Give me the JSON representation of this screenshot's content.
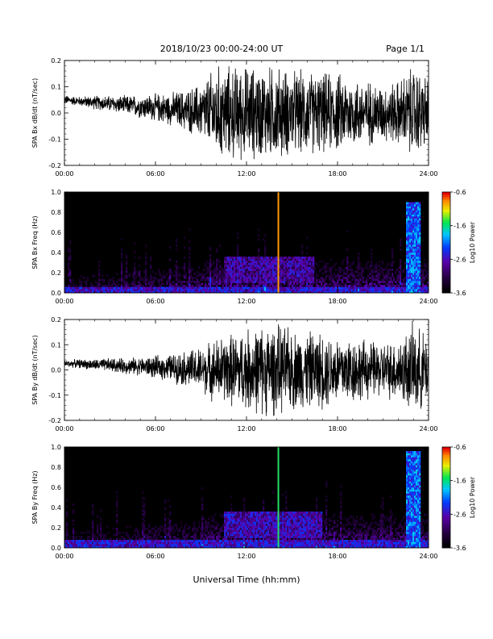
{
  "header": {
    "title": "2018/10/23  00:00-24:00 UT",
    "page_label": "Page 1/1"
  },
  "footer": {
    "xlabel": "Universal Time (hh:mm)"
  },
  "colors": {
    "trace": "#000000",
    "spec_background": "#000000",
    "bx_marker": "#ff9900",
    "by_marker": "#22dd66"
  },
  "chart_data": [
    {
      "type": "line",
      "id": "bx_timeseries",
      "ylabel": "SPA Bx dB/dt (nT/sec)",
      "x_ticks": [
        "00:00",
        "06:00",
        "12:00",
        "18:00",
        "24:00"
      ],
      "y_ticks": [
        "0.2",
        "0.1",
        "0.0",
        "-0.1",
        "-0.2"
      ],
      "xlim": [
        0,
        24
      ],
      "ylim": [
        -0.2,
        0.2
      ],
      "series": [
        {
          "x": [
            0,
            1,
            2,
            3,
            4,
            5,
            6,
            7,
            8,
            9,
            10,
            11,
            12,
            13,
            14,
            15,
            16,
            17,
            18,
            19,
            20,
            21,
            22,
            23,
            24
          ],
          "center": [
            0.05,
            0.045,
            0.04,
            0.035,
            0.03,
            0.025,
            0.02,
            0.015,
            0.01,
            0.005,
            0,
            0,
            0,
            0,
            0,
            0,
            0,
            0,
            0,
            0,
            0,
            0,
            0,
            0,
            0
          ],
          "amplitude": [
            0.02,
            0.02,
            0.03,
            0.035,
            0.04,
            0.05,
            0.06,
            0.07,
            0.09,
            0.12,
            0.2,
            0.2,
            0.2,
            0.2,
            0.2,
            0.18,
            0.18,
            0.17,
            0.17,
            0.15,
            0.14,
            0.12,
            0.14,
            0.2,
            0.15
          ]
        }
      ]
    },
    {
      "type": "heatmap",
      "id": "bx_spectrogram",
      "ylabel": "SPA Bx Freq (Hz)",
      "x_ticks": [
        "00:00",
        "06:00",
        "12:00",
        "18:00",
        "24:00"
      ],
      "y_ticks": [
        "1.0",
        "0.8",
        "0.6",
        "0.4",
        "0.2",
        "0.0"
      ],
      "xlim": [
        0,
        24
      ],
      "ylim": [
        0,
        1.0
      ],
      "colorbar": {
        "label": "Log10 Power",
        "ticks": [
          "-0.6",
          "-1.6",
          "-2.6",
          "-3.6"
        ],
        "range": [
          -3.6,
          -0.6
        ]
      },
      "marker_hour": 14.1,
      "features": [
        {
          "x": [
            10.5,
            16.5
          ],
          "y": [
            0.1,
            0.35
          ],
          "level": -2.4
        },
        {
          "x": [
            22.5,
            23.5
          ],
          "y": [
            0.0,
            0.9
          ],
          "level": -1.8
        },
        {
          "x": [
            0,
            24
          ],
          "y": [
            0.0,
            0.05
          ],
          "level": -2.2
        }
      ]
    },
    {
      "type": "line",
      "id": "by_timeseries",
      "ylabel": "SPA By dB/dt (nT/sec)",
      "x_ticks": [
        "00:00",
        "06:00",
        "12:00",
        "18:00",
        "24:00"
      ],
      "y_ticks": [
        "0.2",
        "0.1",
        "0.0",
        "-0.1",
        "-0.2"
      ],
      "xlim": [
        0,
        24
      ],
      "ylim": [
        -0.2,
        0.2
      ],
      "series": [
        {
          "x": [
            0,
            1,
            2,
            3,
            4,
            5,
            6,
            7,
            8,
            9,
            10,
            11,
            12,
            13,
            14,
            15,
            16,
            17,
            18,
            19,
            20,
            21,
            22,
            23,
            24
          ],
          "center": [
            0.025,
            0.025,
            0.02,
            0.02,
            0.015,
            0.015,
            0.01,
            0.01,
            0.005,
            0,
            0,
            0,
            0,
            0,
            0,
            0,
            0,
            0,
            0,
            0,
            0,
            0,
            0,
            0,
            0
          ],
          "amplitude": [
            0.015,
            0.02,
            0.025,
            0.03,
            0.035,
            0.04,
            0.05,
            0.06,
            0.08,
            0.1,
            0.14,
            0.16,
            0.18,
            0.2,
            0.2,
            0.18,
            0.17,
            0.17,
            0.16,
            0.15,
            0.13,
            0.12,
            0.14,
            0.2,
            0.15
          ]
        }
      ]
    },
    {
      "type": "heatmap",
      "id": "by_spectrogram",
      "ylabel": "SPA By Freq (Hz)",
      "x_ticks": [
        "00:00",
        "06:00",
        "12:00",
        "18:00",
        "24:00"
      ],
      "y_ticks": [
        "1.0",
        "0.8",
        "0.6",
        "0.4",
        "0.2",
        "0.0"
      ],
      "xlim": [
        0,
        24
      ],
      "ylim": [
        0,
        1.0
      ],
      "colorbar": {
        "label": "Log10 Power",
        "ticks": [
          "-0.6",
          "-1.6",
          "-2.6",
          "-3.6"
        ],
        "range": [
          -3.6,
          -0.6
        ]
      },
      "marker_hour": 14.1,
      "features": [
        {
          "x": [
            10.5,
            17
          ],
          "y": [
            0.1,
            0.35
          ],
          "level": -2.3
        },
        {
          "x": [
            22.5,
            23.5
          ],
          "y": [
            0.0,
            0.95
          ],
          "level": -1.8
        },
        {
          "x": [
            0,
            24
          ],
          "y": [
            0.0,
            0.08
          ],
          "level": -2.2
        }
      ]
    }
  ]
}
